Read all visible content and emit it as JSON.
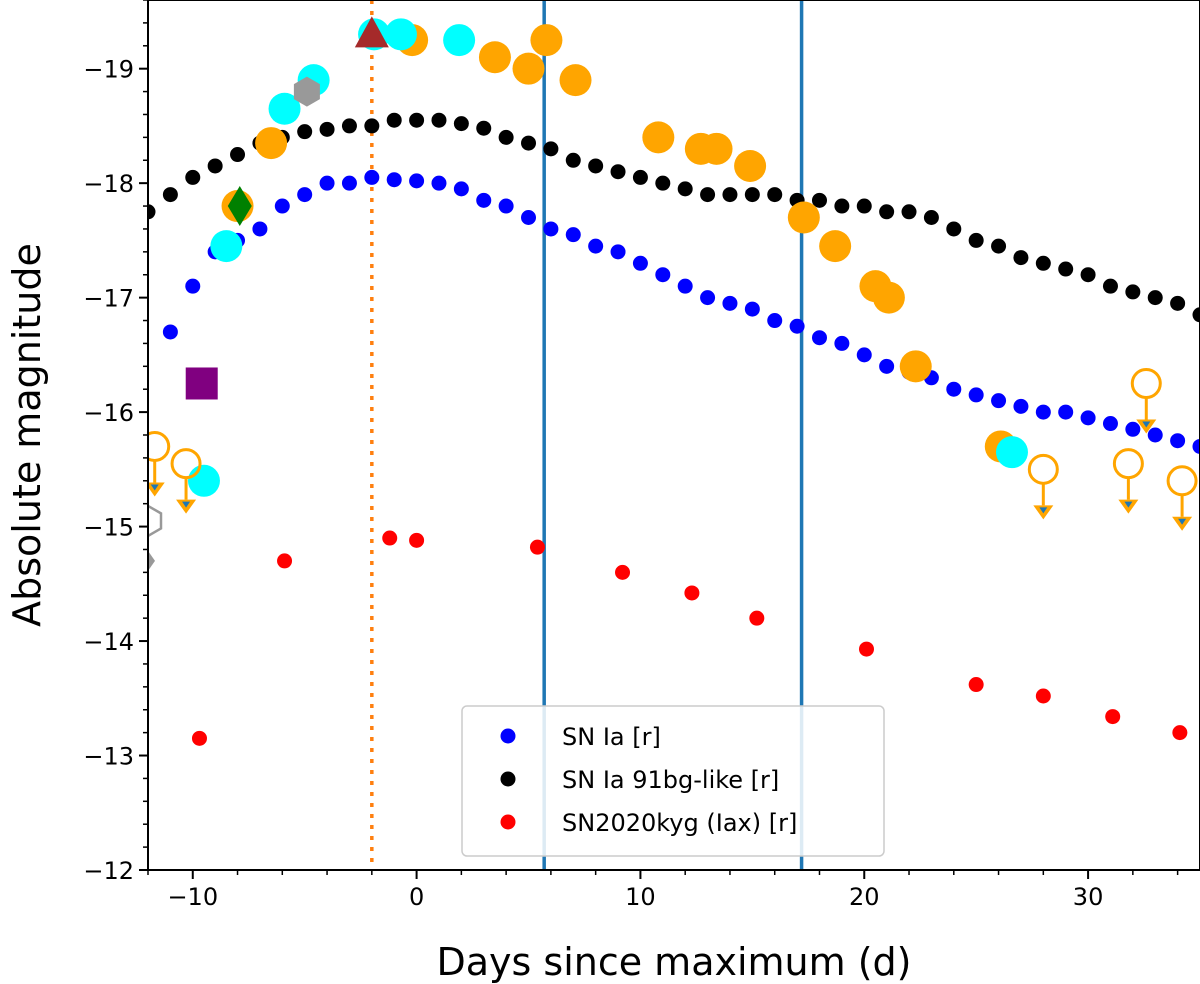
{
  "chart_data": {
    "type": "scatter",
    "xlabel": "Days since maximum (d)",
    "ylabel": "Absolute magnitude",
    "xlim": [
      -12,
      35
    ],
    "ylim": [
      -12,
      -19.6
    ],
    "y_inverted": true,
    "grid": false,
    "legend_position": "bottom-center",
    "x_ticks": [
      -10,
      0,
      10,
      20,
      30
    ],
    "x_tick_labels": [
      "−10",
      "0",
      "10",
      "20",
      "30"
    ],
    "y_ticks": [
      -12,
      -13,
      -14,
      -15,
      -16,
      -17,
      -18,
      -19
    ],
    "y_tick_labels": [
      "−12",
      "−13",
      "−14",
      "−15",
      "−16",
      "−17",
      "−18",
      "−19"
    ],
    "vlines": [
      {
        "x": -2.0,
        "style": "dotted",
        "color": "#ff7f0e"
      },
      {
        "x": 5.7,
        "style": "solid",
        "color": "#1f77b4"
      },
      {
        "x": 17.2,
        "style": "solid",
        "color": "#1f77b4"
      }
    ],
    "series": [
      {
        "name": "SN Ia [r]",
        "color": "#0000ff",
        "in_legend": true,
        "marker": "circle",
        "x": [
          -11.0,
          -10.0,
          -9.0,
          -8.0,
          -7.0,
          -6.0,
          -5.0,
          -4.0,
          -3.0,
          -2.0,
          -1.0,
          0.0,
          1.0,
          2.0,
          3.0,
          4.0,
          5.0,
          6.0,
          7.0,
          8.0,
          9.0,
          10.0,
          11.0,
          12.0,
          13.0,
          14.0,
          15.0,
          16.0,
          17.0,
          18.0,
          19.0,
          20.0,
          21.0,
          22.0,
          23.0,
          24.0,
          25.0,
          26.0,
          27.0,
          28.0,
          29.0,
          30.0,
          31.0,
          32.0,
          33.0,
          34.0,
          35.0
        ],
        "y": [
          -16.7,
          -17.1,
          -17.4,
          -17.5,
          -17.6,
          -17.8,
          -17.9,
          -18.0,
          -18.0,
          -18.05,
          -18.03,
          -18.02,
          -18.0,
          -17.95,
          -17.85,
          -17.8,
          -17.7,
          -17.6,
          -17.55,
          -17.45,
          -17.4,
          -17.3,
          -17.2,
          -17.1,
          -17.0,
          -16.95,
          -16.9,
          -16.8,
          -16.75,
          -16.65,
          -16.6,
          -16.5,
          -16.4,
          -16.35,
          -16.3,
          -16.2,
          -16.15,
          -16.1,
          -16.05,
          -16.0,
          -16.0,
          -15.95,
          -15.9,
          -15.85,
          -15.8,
          -15.75,
          -15.7
        ]
      },
      {
        "name": "SN Ia 91bg-like [r]",
        "color": "#000000",
        "in_legend": true,
        "marker": "circle",
        "x": [
          -12.0,
          -11.0,
          -10.0,
          -9.0,
          -8.0,
          -7.0,
          -6.0,
          -5.0,
          -4.0,
          -3.0,
          -2.0,
          -1.0,
          0.0,
          1.0,
          2.0,
          3.0,
          4.0,
          5.0,
          6.0,
          7.0,
          8.0,
          9.0,
          10.0,
          11.0,
          12.0,
          13.0,
          14.0,
          15.0,
          16.0,
          17.0,
          18.0,
          19.0,
          20.0,
          21.0,
          22.0,
          23.0,
          24.0,
          25.0,
          26.0,
          27.0,
          28.0,
          29.0,
          30.0,
          31.0,
          32.0,
          33.0,
          34.0,
          35.0
        ],
        "y": [
          -17.75,
          -17.9,
          -18.05,
          -18.15,
          -18.25,
          -18.35,
          -18.4,
          -18.45,
          -18.47,
          -18.5,
          -18.5,
          -18.55,
          -18.55,
          -18.55,
          -18.52,
          -18.48,
          -18.4,
          -18.35,
          -18.3,
          -18.2,
          -18.15,
          -18.1,
          -18.05,
          -18.0,
          -17.95,
          -17.9,
          -17.9,
          -17.9,
          -17.9,
          -17.85,
          -17.85,
          -17.8,
          -17.8,
          -17.75,
          -17.75,
          -17.7,
          -17.6,
          -17.5,
          -17.45,
          -17.35,
          -17.3,
          -17.25,
          -17.2,
          -17.1,
          -17.05,
          -17.0,
          -16.95,
          -16.85
        ]
      },
      {
        "name": "SN2020kyg (Iax) [r]",
        "color": "#ff0000",
        "in_legend": true,
        "marker": "circle",
        "x": [
          -9.7,
          -5.9,
          -1.2,
          0.0,
          5.4,
          9.2,
          12.3,
          15.2,
          20.1,
          25.0,
          28.0,
          31.1,
          34.1
        ],
        "y": [
          -13.15,
          -14.7,
          -14.9,
          -14.88,
          -14.82,
          -14.6,
          -14.42,
          -14.2,
          -13.93,
          -13.62,
          -13.52,
          -13.34,
          -13.2
        ]
      },
      {
        "name": "",
        "color": "#ffa500",
        "in_legend": false,
        "marker": "big-circle",
        "x": [
          -8.0,
          -6.5,
          -0.2,
          3.5,
          5.0,
          5.8,
          7.1,
          10.8,
          12.7,
          13.4,
          14.9,
          17.3,
          18.7,
          20.5,
          21.1,
          22.3,
          26.1
        ],
        "y": [
          -17.8,
          -18.35,
          -19.25,
          -19.1,
          -19.0,
          -19.25,
          -18.9,
          -18.4,
          -18.3,
          -18.3,
          -18.15,
          -17.7,
          -17.45,
          -17.1,
          -17.0,
          -16.4,
          -15.7
        ]
      },
      {
        "name": "",
        "color": "#00ffff",
        "in_legend": false,
        "marker": "big-circle",
        "x": [
          -9.5,
          -8.5,
          -5.9,
          -4.6,
          -1.9,
          -0.7,
          1.9,
          26.6
        ],
        "y": [
          -15.4,
          -17.45,
          -18.65,
          -18.9,
          -19.3,
          -19.3,
          -19.25,
          -15.65
        ]
      },
      {
        "name": "",
        "color": "#ffa500",
        "in_legend": false,
        "marker": "upper-limit",
        "x": [
          -11.7,
          -10.3,
          28.0,
          31.8,
          32.6,
          34.2
        ],
        "y": [
          -15.7,
          -15.55,
          -15.5,
          -15.55,
          -16.25,
          -15.4
        ]
      }
    ],
    "extra_markers": [
      {
        "shape": "square",
        "color": "#800080",
        "x": -9.6,
        "y": -16.25
      },
      {
        "shape": "diamond",
        "color": "#008000",
        "x": -7.9,
        "y": -17.8
      },
      {
        "shape": "hexagon",
        "color": "#999999",
        "x": -4.9,
        "y": -18.8
      },
      {
        "shape": "triangle",
        "color": "#a52a2a",
        "x": -2.0,
        "y": -19.3
      },
      {
        "shape": "hexagon-open",
        "color": "#999999",
        "x": -12.0,
        "y": -15.05
      },
      {
        "shape": "diamond-small",
        "color": "#999999",
        "x": -12.0,
        "y": -14.7
      }
    ]
  }
}
